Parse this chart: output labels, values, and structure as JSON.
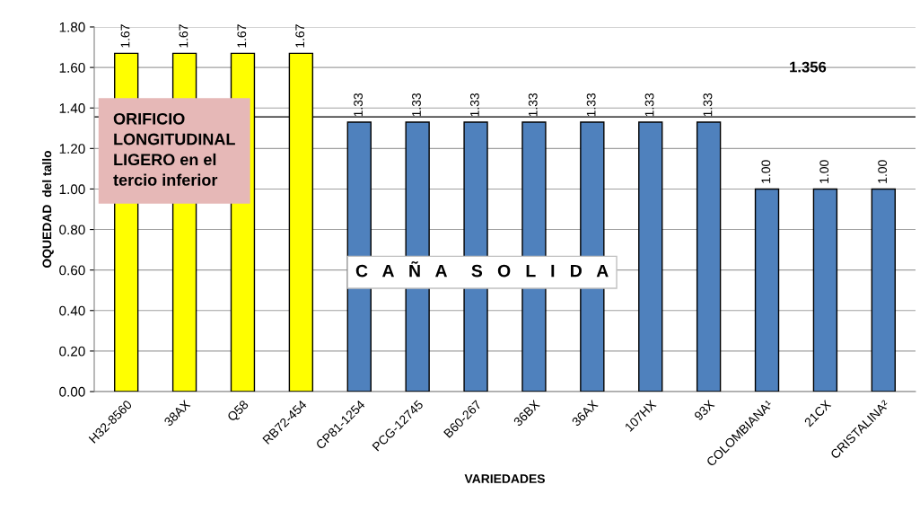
{
  "chart_data": {
    "type": "bar",
    "xlabel": "VARIEDADES",
    "ylabel": "OQUEDAD  del tallo",
    "categories": [
      "H32-8560",
      "38AX",
      "Q58",
      "RB72-454",
      "CP81-1254",
      "PCG-12745",
      "B60-267",
      "36BX",
      "36AX",
      "107HX",
      "93X",
      "COLOMBIANA¹",
      "21CX",
      "CRISTALINA²"
    ],
    "values": [
      1.67,
      1.67,
      1.67,
      1.67,
      1.33,
      1.33,
      1.33,
      1.33,
      1.33,
      1.33,
      1.33,
      1.0,
      1.0,
      1.0
    ],
    "colors": [
      "#ffff00",
      "#ffff00",
      "#ffff00",
      "#ffff00",
      "#4f81bd",
      "#4f81bd",
      "#4f81bd",
      "#4f81bd",
      "#4f81bd",
      "#4f81bd",
      "#4f81bd",
      "#4f81bd",
      "#4f81bd",
      "#4f81bd"
    ],
    "value_labels": [
      "1.67",
      "1.67",
      "1.67",
      "1.67",
      "1.33",
      "1.33",
      "1.33",
      "1.33",
      "1.33",
      "1.33",
      "1.33",
      "1.00",
      "1.00",
      "1.00"
    ],
    "ylim": [
      0,
      1.8
    ],
    "yticks": [
      {
        "value": 0,
        "label": "0.00"
      },
      {
        "value": 0.2,
        "label": "0.20"
      },
      {
        "value": 0.4,
        "label": "0.40"
      },
      {
        "value": 0.6,
        "label": "0.60"
      },
      {
        "value": 0.8,
        "label": "0.80"
      },
      {
        "value": 1.0,
        "label": "1.00"
      },
      {
        "value": 1.2,
        "label": "1.20"
      },
      {
        "value": 1.4,
        "label": "1.40"
      },
      {
        "value": 1.6,
        "label": "1.60"
      },
      {
        "value": 1.8,
        "label": "1.80"
      }
    ],
    "grid": "y",
    "ref_lines": [
      {
        "axis": "y",
        "value": 1.356,
        "label": "1.356",
        "color": "#000000"
      }
    ],
    "annotations": [
      "ORIFICIO\nLONGITUDINAL\nLIGERO en el\ntercio inferior",
      "C   A   Ñ   A     S   O   L   I   D   A"
    ]
  }
}
